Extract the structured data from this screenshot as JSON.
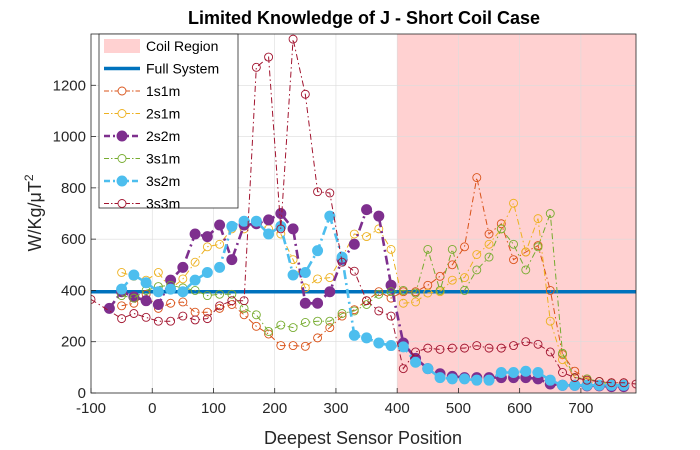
{
  "chart_data": {
    "type": "line",
    "title": "Limited Knowledge of J - Short Coil Case",
    "xlabel": "Deepest Sensor Position",
    "ylabel": "W/Kg/μT",
    "ylabel_superscript": "2",
    "xlim": [
      -100,
      790
    ],
    "ylim": [
      0,
      1400
    ],
    "xticks": [
      -100,
      0,
      100,
      200,
      300,
      400,
      500,
      600,
      700
    ],
    "xtick_labels": [
      "-100",
      "0",
      "100",
      "200",
      "300",
      "400",
      "500",
      "600",
      "700"
    ],
    "yticks": [
      0,
      200,
      400,
      600,
      800,
      1000,
      1200
    ],
    "ytick_labels": [
      "0",
      "200",
      "400",
      "600",
      "800",
      "1000",
      "1200"
    ],
    "grid": true,
    "legend_position": "top-left",
    "region": {
      "name": "Coil Region",
      "x_start": 400,
      "x_end": 790,
      "color": "#ffd1d1"
    },
    "reference_line": {
      "name": "Full System",
      "y": 395,
      "color": "#0072bd"
    },
    "series": [
      {
        "name": "1s1m",
        "color": "#d95319",
        "style": "dashdot",
        "marker": "open",
        "width": 1,
        "x": [
          -50,
          -30,
          -10,
          10,
          30,
          50,
          70,
          90,
          110,
          130,
          150,
          170,
          190,
          210,
          230,
          250,
          270,
          290,
          310,
          330,
          350,
          370,
          390,
          410,
          430,
          450,
          470,
          490,
          510,
          530,
          550,
          570,
          590,
          610,
          630,
          650,
          670,
          690,
          710,
          730,
          750,
          770
        ],
        "y": [
          340,
          350,
          385,
          330,
          350,
          355,
          315,
          315,
          330,
          345,
          305,
          260,
          230,
          185,
          185,
          182,
          215,
          255,
          300,
          325,
          360,
          395,
          370,
          395,
          395,
          420,
          455,
          500,
          570,
          840,
          620,
          660,
          520,
          550,
          575,
          400,
          150,
          85,
          55,
          45,
          40,
          40
        ]
      },
      {
        "name": "2s1m",
        "color": "#edb120",
        "style": "dashdot",
        "marker": "open",
        "width": 1,
        "x": [
          -50,
          -30,
          -10,
          10,
          30,
          50,
          70,
          90,
          110,
          130,
          150,
          170,
          190,
          210,
          230,
          250,
          270,
          290,
          310,
          330,
          350,
          370,
          390,
          410,
          430,
          450,
          470,
          490,
          510,
          530,
          550,
          570,
          590,
          610,
          630,
          650,
          670,
          690,
          710,
          730,
          750,
          770
        ],
        "y": [
          470,
          455,
          440,
          470,
          405,
          445,
          510,
          570,
          580,
          640,
          640,
          665,
          640,
          620,
          520,
          410,
          445,
          450,
          530,
          620,
          610,
          640,
          560,
          350,
          355,
          390,
          395,
          440,
          450,
          540,
          580,
          640,
          740,
          550,
          680,
          280,
          130,
          60,
          45,
          35,
          35,
          30
        ]
      },
      {
        "name": "2s2m",
        "color": "#7e2f8e",
        "style": "dashdot",
        "marker": "filled",
        "width": 2.6,
        "x": [
          -70,
          -50,
          -30,
          -10,
          10,
          30,
          50,
          70,
          90,
          110,
          130,
          150,
          170,
          190,
          210,
          230,
          250,
          270,
          290,
          310,
          330,
          350,
          370,
          390,
          410,
          430,
          450,
          470,
          490,
          510,
          530,
          550,
          570,
          590,
          610,
          630,
          650,
          670,
          690,
          710,
          730,
          750,
          770
        ],
        "y": [
          330,
          395,
          375,
          360,
          345,
          440,
          490,
          620,
          610,
          655,
          520,
          655,
          660,
          675,
          700,
          640,
          350,
          350,
          395,
          520,
          580,
          715,
          690,
          420,
          195,
          135,
          95,
          75,
          65,
          60,
          60,
          60,
          60,
          60,
          60,
          55,
          35,
          30,
          30,
          28,
          28,
          25,
          25
        ]
      },
      {
        "name": "3s1m",
        "color": "#77ac30",
        "style": "dashdot",
        "marker": "open",
        "width": 1,
        "x": [
          -50,
          -30,
          -10,
          10,
          30,
          50,
          70,
          90,
          110,
          130,
          150,
          170,
          190,
          210,
          230,
          250,
          270,
          290,
          310,
          330,
          350,
          370,
          390,
          410,
          430,
          450,
          470,
          490,
          510,
          530,
          550,
          570,
          590,
          610,
          630,
          650,
          670,
          690,
          710,
          730,
          750,
          770
        ],
        "y": [
          380,
          370,
          400,
          415,
          420,
          410,
          400,
          380,
          385,
          385,
          330,
          305,
          240,
          265,
          255,
          275,
          280,
          280,
          310,
          320,
          345,
          385,
          395,
          400,
          390,
          560,
          400,
          560,
          400,
          480,
          530,
          640,
          580,
          480,
          570,
          700,
          155,
          60,
          55,
          45,
          35,
          30
        ]
      },
      {
        "name": "3s2m",
        "color": "#4dbeee",
        "style": "dashdot",
        "marker": "filled",
        "width": 2.6,
        "x": [
          -50,
          -30,
          -10,
          10,
          30,
          50,
          70,
          90,
          110,
          130,
          150,
          170,
          190,
          210,
          230,
          250,
          270,
          290,
          310,
          330,
          350,
          370,
          390,
          410,
          430,
          450,
          470,
          490,
          510,
          530,
          550,
          570,
          590,
          610,
          630,
          650,
          670,
          690,
          710,
          730,
          750,
          770
        ],
        "y": [
          405,
          460,
          430,
          395,
          405,
          395,
          440,
          470,
          490,
          650,
          670,
          670,
          620,
          650,
          460,
          470,
          555,
          690,
          530,
          225,
          215,
          195,
          185,
          180,
          120,
          95,
          60,
          55,
          55,
          50,
          50,
          80,
          80,
          85,
          80,
          50,
          30,
          30,
          30,
          30,
          30,
          30
        ]
      },
      {
        "name": "3s3m",
        "color": "#a2142f",
        "style": "dashdot",
        "marker": "open",
        "width": 1,
        "x": [
          -100,
          -50,
          -30,
          -10,
          10,
          30,
          50,
          70,
          90,
          110,
          130,
          150,
          170,
          190,
          210,
          230,
          250,
          270,
          290,
          310,
          330,
          350,
          370,
          390,
          410,
          430,
          450,
          470,
          490,
          510,
          530,
          550,
          570,
          590,
          610,
          630,
          650,
          670,
          690,
          710,
          730,
          750,
          770,
          790
        ],
        "y": [
          365,
          290,
          310,
          295,
          280,
          280,
          300,
          285,
          290,
          340,
          360,
          360,
          1270,
          1310,
          640,
          1380,
          1165,
          785,
          780,
          510,
          475,
          360,
          320,
          300,
          95,
          160,
          175,
          170,
          175,
          175,
          185,
          175,
          175,
          185,
          200,
          190,
          160,
          80,
          60,
          50,
          45,
          40,
          40,
          35
        ]
      }
    ]
  }
}
